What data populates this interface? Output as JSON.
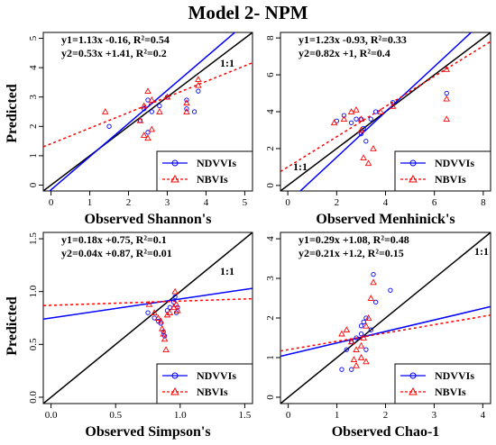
{
  "title": "Model 2- NPM",
  "ylabel": "Predicted",
  "legend": {
    "series1": "NDVVIs",
    "series2": "NBVIs"
  },
  "colors": {
    "series1": "#0000ff",
    "series2": "#ff0000",
    "oneone": "#000000"
  },
  "chart_data": [
    {
      "type": "scatter",
      "id": "shannon",
      "xlabel": "Observed Shannon's",
      "xlim": [
        -0.2,
        5.2
      ],
      "ylim": [
        -0.2,
        5.2
      ],
      "xticks": [
        0,
        1,
        2,
        3,
        4,
        5
      ],
      "yticks": [
        0,
        1,
        2,
        3,
        4,
        5
      ],
      "eq1": "y1=1.13x -0.16, R²=0.54",
      "eq2": "y2=0.53x +1.41, R²=0.2",
      "oneone_label": "1:1",
      "fit1": {
        "slope": 1.13,
        "intercept": -0.16
      },
      "fit2": {
        "slope": 0.53,
        "intercept": 1.41
      },
      "series": [
        {
          "name": "NDVVIs",
          "points": [
            [
              1.5,
              2.0
            ],
            [
              2.3,
              2.2
            ],
            [
              2.4,
              2.6
            ],
            [
              2.5,
              2.9
            ],
            [
              2.6,
              2.5
            ],
            [
              2.8,
              2.7
            ],
            [
              3.0,
              3.0
            ],
            [
              3.5,
              2.9
            ],
            [
              3.5,
              2.6
            ],
            [
              3.8,
              3.2
            ],
            [
              2.5,
              1.8
            ],
            [
              3.7,
              2.5
            ]
          ]
        },
        {
          "name": "NBVIs",
          "points": [
            [
              1.4,
              2.5
            ],
            [
              2.3,
              2.2
            ],
            [
              2.4,
              2.7
            ],
            [
              2.5,
              3.2
            ],
            [
              2.6,
              2.9
            ],
            [
              2.8,
              2.5
            ],
            [
              3.0,
              3.0
            ],
            [
              3.5,
              2.5
            ],
            [
              3.5,
              2.8
            ],
            [
              3.8,
              3.6
            ],
            [
              3.8,
              3.4
            ],
            [
              2.5,
              1.6
            ],
            [
              2.4,
              1.7
            ],
            [
              2.6,
              1.9
            ]
          ]
        }
      ]
    },
    {
      "type": "scatter",
      "id": "menhinick",
      "xlabel": "Observed Menhinick's",
      "xlim": [
        -0.3,
        8.3
      ],
      "ylim": [
        -0.3,
        8.3
      ],
      "xticks": [
        0,
        2,
        4,
        6,
        8
      ],
      "yticks": [
        0,
        2,
        4,
        6,
        8
      ],
      "eq1": "y1=1.23x -0.93, R²=0.33",
      "eq2": "y2=0.82x +1, R²=0.4",
      "oneone_label": "1:1",
      "fit1": {
        "slope": 1.23,
        "intercept": -0.93
      },
      "fit2": {
        "slope": 0.82,
        "intercept": 1.0
      },
      "series": [
        {
          "name": "NDVVIs",
          "points": [
            [
              2.0,
              3.5
            ],
            [
              2.3,
              3.8
            ],
            [
              2.6,
              3.4
            ],
            [
              2.8,
              3.6
            ],
            [
              3.0,
              3.6
            ],
            [
              3.1,
              3.1
            ],
            [
              3.2,
              2.4
            ],
            [
              3.4,
              3.6
            ],
            [
              3.6,
              4.0
            ],
            [
              4.3,
              4.5
            ],
            [
              6.5,
              5.0
            ],
            [
              3.0,
              2.8
            ]
          ]
        },
        {
          "name": "NBVIs",
          "points": [
            [
              1.9,
              3.4
            ],
            [
              2.3,
              3.6
            ],
            [
              2.6,
              4.0
            ],
            [
              2.8,
              4.1
            ],
            [
              3.0,
              3.6
            ],
            [
              3.1,
              1.5
            ],
            [
              3.3,
              1.2
            ],
            [
              3.5,
              2.0
            ],
            [
              3.8,
              4.0
            ],
            [
              4.3,
              4.3
            ],
            [
              6.5,
              6.3
            ],
            [
              6.5,
              4.7
            ],
            [
              6.5,
              3.6
            ],
            [
              3.0,
              3.0
            ]
          ]
        }
      ]
    },
    {
      "type": "scatter",
      "id": "simpson",
      "xlabel": "Observed Simpson's",
      "xlim": [
        -0.06,
        1.56
      ],
      "ylim": [
        -0.06,
        1.56
      ],
      "xticks": [
        0.0,
        0.5,
        1.0,
        1.5
      ],
      "yticks": [
        0.0,
        0.5,
        1.0,
        1.5
      ],
      "xtick_labels": [
        "0.0",
        "0.5",
        "1.0",
        "1.5"
      ],
      "ytick_labels": [
        "0.0",
        "0.5",
        "1.0",
        "1.5"
      ],
      "eq1": "y1=0.18x +0.75, R²=0.1",
      "eq2": "y2=0.04x +0.87, R²=0.01",
      "oneone_label": "1:1",
      "fit1": {
        "slope": 0.18,
        "intercept": 0.75
      },
      "fit2": {
        "slope": 0.04,
        "intercept": 0.87
      },
      "series": [
        {
          "name": "NDVVIs",
          "points": [
            [
              0.75,
              0.8
            ],
            [
              0.8,
              0.75
            ],
            [
              0.83,
              0.72
            ],
            [
              0.85,
              0.7
            ],
            [
              0.87,
              0.62
            ],
            [
              0.88,
              0.58
            ],
            [
              0.9,
              0.82
            ],
            [
              0.92,
              0.85
            ],
            [
              0.95,
              0.9
            ],
            [
              0.96,
              0.95
            ],
            [
              0.97,
              0.8
            ],
            [
              0.98,
              0.85
            ]
          ]
        },
        {
          "name": "NBVIs",
          "points": [
            [
              0.76,
              0.88
            ],
            [
              0.8,
              0.8
            ],
            [
              0.83,
              0.75
            ],
            [
              0.85,
              0.72
            ],
            [
              0.87,
              0.6
            ],
            [
              0.88,
              0.55
            ],
            [
              0.89,
              0.45
            ],
            [
              0.9,
              0.78
            ],
            [
              0.92,
              0.8
            ],
            [
              0.95,
              0.85
            ],
            [
              0.96,
              1.0
            ],
            [
              0.98,
              0.82
            ],
            [
              0.97,
              0.88
            ],
            [
              0.86,
              0.65
            ]
          ]
        }
      ]
    },
    {
      "type": "scatter",
      "id": "chao",
      "xlabel": "Observed Chao-1",
      "xlim": [
        -0.16,
        4.16
      ],
      "ylim": [
        -0.16,
        4.16
      ],
      "xticks": [
        0,
        1,
        2,
        3,
        4
      ],
      "yticks": [
        0,
        1,
        2,
        3,
        4
      ],
      "eq1": "y1=0.29x +1.08, R²=0.48",
      "eq2": "y2=0.21x +1.2, R²=0.15",
      "oneone_label": "1:1",
      "fit1": {
        "slope": 0.29,
        "intercept": 1.08
      },
      "fit2": {
        "slope": 0.21,
        "intercept": 1.2
      },
      "series": [
        {
          "name": "NDVVIs",
          "points": [
            [
              1.1,
              0.7
            ],
            [
              1.2,
              1.2
            ],
            [
              1.3,
              1.4
            ],
            [
              1.4,
              1.5
            ],
            [
              1.5,
              1.6
            ],
            [
              1.55,
              1.9
            ],
            [
              1.6,
              2.0
            ],
            [
              1.6,
              1.2
            ],
            [
              1.7,
              1.7
            ],
            [
              1.75,
              3.1
            ],
            [
              1.8,
              2.4
            ],
            [
              2.1,
              2.7
            ],
            [
              1.3,
              0.7
            ],
            [
              1.5,
              1.8
            ]
          ]
        },
        {
          "name": "NBVIs",
          "points": [
            [
              1.1,
              1.6
            ],
            [
              1.2,
              1.7
            ],
            [
              1.3,
              1.4
            ],
            [
              1.4,
              1.2
            ],
            [
              1.4,
              0.8
            ],
            [
              1.5,
              1.0
            ],
            [
              1.55,
              1.5
            ],
            [
              1.6,
              1.8
            ],
            [
              1.65,
              2.0
            ],
            [
              1.7,
              2.5
            ],
            [
              1.75,
              2.9
            ],
            [
              1.6,
              0.9
            ],
            [
              1.35,
              0.95
            ],
            [
              1.5,
              1.3
            ]
          ]
        }
      ]
    }
  ]
}
